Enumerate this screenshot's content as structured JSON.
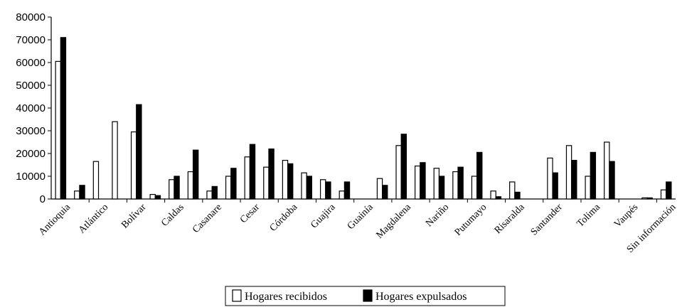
{
  "chart_data": {
    "type": "bar",
    "title": "",
    "xlabel": "",
    "ylabel": "",
    "ylim": [
      0,
      80000
    ],
    "yticks": [
      0,
      10000,
      20000,
      30000,
      40000,
      50000,
      60000,
      70000,
      80000
    ],
    "grid": false,
    "legend_position": "bottom-center",
    "categories_labeled": [
      "Antioquia",
      "Atlántico",
      "Bolívar",
      "Caldas",
      "Casanare",
      "Cesar",
      "Córdoba",
      "Guajira",
      "Guainía",
      "Magdalena",
      "Nariño",
      "Putumayo",
      "Risaralda",
      "Santander",
      "Tolima",
      "Vaupés",
      "Sin información"
    ],
    "series": [
      {
        "name": "Hogares recibidos",
        "color": "#ffffff",
        "values": [
          60500,
          3500,
          16500,
          34000,
          29500,
          2000,
          8500,
          12000,
          3500,
          10000,
          18500,
          14000,
          17000,
          11500,
          8500,
          3500,
          0,
          9000,
          23500,
          14500,
          13500,
          12000,
          10000,
          3500,
          7500,
          0,
          18000,
          23500,
          10000,
          25000,
          0,
          500,
          4000
        ]
      },
      {
        "name": "Hogares expulsados",
        "color": "#000000",
        "values": [
          71000,
          6000,
          0,
          0,
          41500,
          1500,
          10000,
          21500,
          5500,
          13500,
          24000,
          22000,
          15500,
          10000,
          7500,
          7500,
          0,
          6000,
          28500,
          16000,
          10000,
          14000,
          20500,
          1000,
          3000,
          0,
          11500,
          17000,
          20500,
          16500,
          0,
          500,
          7500
        ]
      }
    ]
  }
}
